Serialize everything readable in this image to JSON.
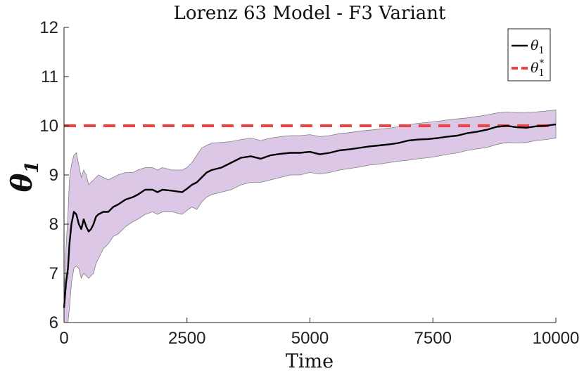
{
  "chart_data": {
    "type": "line",
    "title": "Lorenz 63 Model - F3 Variant",
    "xlabel": "Time",
    "ylabel": "θ",
    "ylabel_sub": "1",
    "xlim": [
      0,
      10000
    ],
    "ylim": [
      6,
      12
    ],
    "xticks": [
      0,
      2500,
      5000,
      7500,
      10000
    ],
    "xtick_labels": [
      "0",
      "2500",
      "5000",
      "7500",
      "10000"
    ],
    "yticks": [
      6,
      7,
      8,
      9,
      10,
      11,
      12
    ],
    "ytick_labels": [
      "6",
      "7",
      "8",
      "9",
      "10",
      "11",
      "12"
    ],
    "legend_position": "top-right",
    "series": [
      {
        "name": "θ1",
        "legend_symbol": "θ",
        "legend_sub": "1",
        "style": "solid",
        "color": "#000000",
        "x": [
          0,
          40,
          80,
          110,
          150,
          200,
          250,
          300,
          350,
          400,
          450,
          500,
          550,
          600,
          650,
          700,
          800,
          900,
          1000,
          1100,
          1250,
          1400,
          1500,
          1650,
          1800,
          1900,
          2000,
          2200,
          2400,
          2500,
          2600,
          2700,
          2800,
          2900,
          3000,
          3200,
          3400,
          3600,
          3800,
          4000,
          4200,
          4400,
          4600,
          4800,
          5000,
          5200,
          5400,
          5600,
          5800,
          6000,
          6200,
          6400,
          6600,
          6800,
          7000,
          7200,
          7400,
          7600,
          7800,
          8000,
          8200,
          8400,
          8600,
          8800,
          9000,
          9200,
          9400,
          9600,
          9800,
          10000
        ],
        "values": [
          6.3,
          6.8,
          7.1,
          7.6,
          8.0,
          8.25,
          8.2,
          8.0,
          7.9,
          8.1,
          7.95,
          7.85,
          7.9,
          8.0,
          8.15,
          8.2,
          8.25,
          8.25,
          8.35,
          8.4,
          8.5,
          8.55,
          8.6,
          8.7,
          8.7,
          8.65,
          8.7,
          8.68,
          8.65,
          8.72,
          8.8,
          8.85,
          8.95,
          9.05,
          9.1,
          9.15,
          9.25,
          9.35,
          9.38,
          9.33,
          9.4,
          9.43,
          9.45,
          9.45,
          9.47,
          9.42,
          9.45,
          9.5,
          9.52,
          9.55,
          9.58,
          9.6,
          9.62,
          9.65,
          9.7,
          9.72,
          9.73,
          9.75,
          9.78,
          9.8,
          9.85,
          9.88,
          9.92,
          9.98,
          10.0,
          9.97,
          9.96,
          9.99,
          10.0,
          10.03
        ],
        "upper": [
          6.5,
          7.5,
          8.2,
          8.9,
          9.2,
          9.4,
          9.45,
          9.2,
          8.95,
          9.1,
          9.0,
          8.8,
          8.85,
          8.9,
          8.95,
          9.0,
          8.95,
          8.9,
          8.95,
          9.0,
          9.05,
          9.05,
          9.1,
          9.15,
          9.15,
          9.1,
          9.15,
          9.1,
          9.1,
          9.15,
          9.25,
          9.4,
          9.55,
          9.6,
          9.65,
          9.66,
          9.68,
          9.72,
          9.75,
          9.7,
          9.75,
          9.78,
          9.8,
          9.8,
          9.82,
          9.78,
          9.8,
          9.84,
          9.86,
          9.89,
          9.91,
          9.93,
          9.95,
          9.98,
          10.02,
          10.05,
          10.07,
          10.09,
          10.12,
          10.14,
          10.16,
          10.19,
          10.22,
          10.26,
          10.28,
          10.27,
          10.27,
          10.28,
          10.3,
          10.32
        ],
        "lower": [
          6.0,
          6.0,
          6.0,
          6.3,
          6.8,
          7.1,
          7.15,
          7.1,
          6.9,
          7.0,
          6.95,
          6.9,
          6.95,
          7.0,
          7.2,
          7.3,
          7.5,
          7.6,
          7.75,
          7.8,
          7.95,
          8.05,
          8.1,
          8.2,
          8.25,
          8.2,
          8.25,
          8.25,
          8.2,
          8.28,
          8.35,
          8.3,
          8.45,
          8.55,
          8.6,
          8.65,
          8.7,
          8.8,
          8.85,
          8.85,
          8.9,
          8.95,
          9.0,
          9.0,
          9.05,
          9.02,
          9.05,
          9.1,
          9.13,
          9.16,
          9.2,
          9.22,
          9.25,
          9.28,
          9.3,
          9.33,
          9.35,
          9.38,
          9.42,
          9.45,
          9.5,
          9.53,
          9.56,
          9.62,
          9.66,
          9.65,
          9.66,
          9.7,
          9.72,
          9.75
        ]
      },
      {
        "name": "θ1*",
        "legend_symbol": "θ",
        "legend_sub": "1",
        "legend_sup": "*",
        "style": "dashed",
        "color": "#f04040",
        "x": [
          0,
          10000
        ],
        "values": [
          10,
          10
        ]
      }
    ],
    "band_color": "#dcc8e6",
    "band_edge_color": "#808080"
  }
}
